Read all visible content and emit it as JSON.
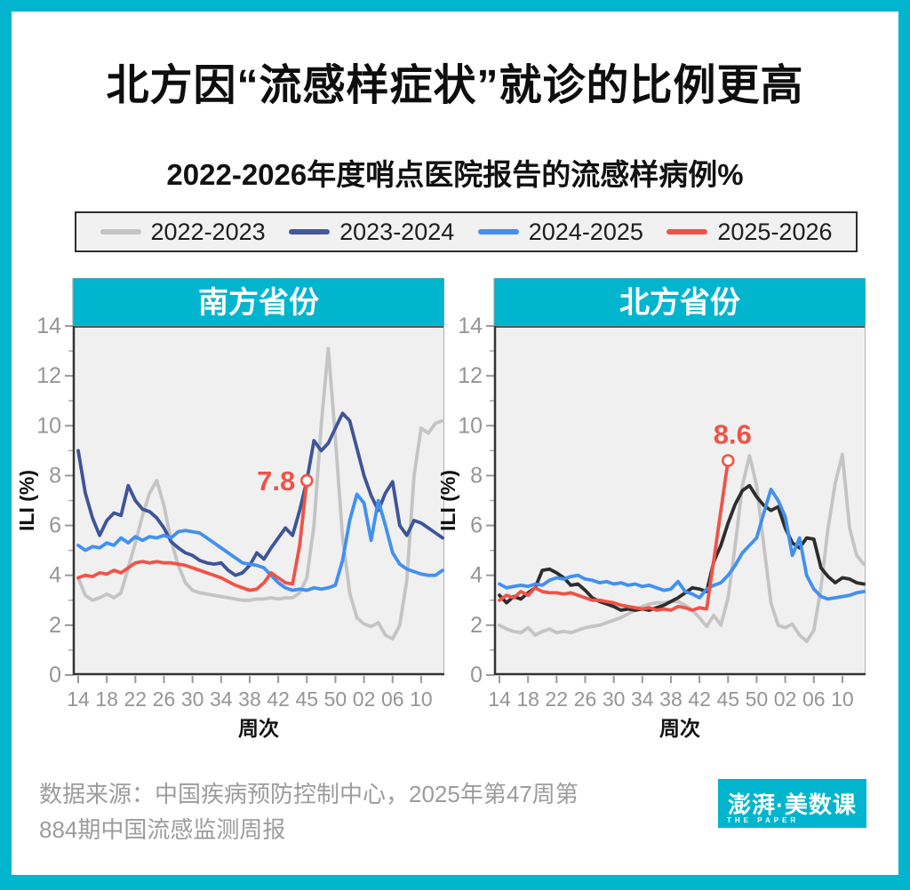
{
  "colors": {
    "teal": "#00b5cd",
    "plot_bg": "#f0f0f0",
    "axis": "#333333",
    "tick_text": "#959595",
    "annotation_red": "#ef5347"
  },
  "title": "北方因“流感样症状”就诊的比例更高",
  "subtitle": "2022-2026年度哨点医院报告的流感样病例%",
  "legend": {
    "items": [
      {
        "label": "2022-2023",
        "color": "#c4c4c4"
      },
      {
        "label": "2023-2024",
        "color": "#45589e"
      },
      {
        "label": "2024-2025",
        "color": "#4190f0"
      },
      {
        "label": "2025-2026",
        "color": "#ef5347"
      }
    ]
  },
  "footer": {
    "source_line1": "数据来源：中国疾病预防控制中心，2025年第47周第",
    "source_line2": "884期中国流感监测周报",
    "logo_main": "澎湃·美数课",
    "logo_sub": "THE PAPER"
  },
  "chart_data": [
    {
      "type": "line",
      "title": "南方省份",
      "xlabel": "周次",
      "ylabel": "ILI (%)",
      "ylim": [
        0,
        14
      ],
      "y_ticks": [
        0,
        2,
        4,
        6,
        8,
        10,
        12,
        14
      ],
      "x_ticks": [
        "14",
        "18",
        "22",
        "26",
        "30",
        "34",
        "38",
        "42",
        "45",
        "50",
        "02",
        "06",
        "10"
      ],
      "n_points": 52,
      "annotation": {
        "text": "7.8",
        "placement": "left"
      },
      "series": [
        {
          "name": "2022-2023",
          "color": "#c4c4c4",
          "values": [
            3.9,
            3.2,
            3.0,
            3.1,
            3.25,
            3.1,
            3.3,
            4.3,
            5.3,
            6.4,
            7.3,
            7.8,
            6.8,
            5.4,
            4.4,
            3.7,
            3.4,
            3.3,
            3.25,
            3.2,
            3.15,
            3.1,
            3.05,
            3.0,
            3.0,
            3.05,
            3.05,
            3.1,
            3.05,
            3.1,
            3.1,
            3.3,
            3.9,
            6.0,
            10.0,
            13.1,
            9.5,
            5.5,
            3.3,
            2.3,
            2.05,
            1.95,
            2.1,
            1.6,
            1.45,
            2.0,
            3.8,
            8.0,
            9.9,
            9.7,
            10.1,
            10.2
          ]
        },
        {
          "name": "2023-2024",
          "color": "#3e549a",
          "values": [
            9.0,
            7.3,
            6.3,
            5.6,
            6.2,
            6.5,
            6.4,
            7.6,
            7.0,
            6.65,
            6.55,
            6.3,
            5.9,
            5.35,
            5.1,
            4.9,
            4.8,
            4.6,
            4.5,
            4.45,
            4.5,
            4.2,
            4.0,
            4.1,
            4.4,
            4.9,
            4.65,
            5.1,
            5.5,
            5.9,
            5.6,
            6.6,
            7.8,
            9.4,
            9.0,
            9.3,
            9.9,
            10.5,
            10.2,
            9.1,
            8.0,
            7.2,
            6.6,
            7.3,
            7.75,
            6.0,
            5.6,
            6.2,
            6.1,
            5.9,
            5.7,
            5.5
          ]
        },
        {
          "name": "2024-2025",
          "color": "#4190f0",
          "values": [
            5.2,
            5.0,
            5.15,
            5.1,
            5.3,
            5.2,
            5.5,
            5.3,
            5.55,
            5.4,
            5.55,
            5.5,
            5.6,
            5.5,
            5.75,
            5.8,
            5.75,
            5.7,
            5.5,
            5.3,
            5.1,
            4.9,
            4.7,
            4.5,
            4.45,
            4.4,
            4.3,
            4.0,
            3.7,
            3.5,
            3.4,
            3.45,
            3.4,
            3.5,
            3.45,
            3.5,
            3.6,
            4.6,
            6.2,
            7.25,
            6.9,
            5.4,
            7.0,
            6.0,
            4.9,
            4.45,
            4.25,
            4.15,
            4.05,
            4.0,
            4.0,
            4.2
          ]
        },
        {
          "name": "2025-2026",
          "color": "#ef5347",
          "end_marker": true,
          "values": [
            3.9,
            4.0,
            3.95,
            4.1,
            4.05,
            4.2,
            4.1,
            4.3,
            4.5,
            4.55,
            4.5,
            4.55,
            4.5,
            4.5,
            4.45,
            4.4,
            4.3,
            4.2,
            4.1,
            4.0,
            3.9,
            3.75,
            3.6,
            3.5,
            3.4,
            3.45,
            3.7,
            4.1,
            3.9,
            3.7,
            3.65,
            5.2,
            7.8
          ]
        }
      ]
    },
    {
      "type": "line",
      "title": "北方省份",
      "xlabel": "周次",
      "ylabel": "ILI (%)",
      "ylim": [
        0,
        14
      ],
      "y_ticks": [
        0,
        2,
        4,
        6,
        8,
        10,
        12,
        14
      ],
      "x_ticks": [
        "14",
        "18",
        "22",
        "26",
        "30",
        "34",
        "38",
        "42",
        "45",
        "50",
        "02",
        "06",
        "10"
      ],
      "n_points": 52,
      "annotation": {
        "text": "8.6",
        "placement": "above"
      },
      "series": [
        {
          "name": "2022-2023",
          "color": "#c4c4c4",
          "values": [
            2.0,
            1.85,
            1.75,
            1.7,
            1.9,
            1.6,
            1.75,
            1.85,
            1.7,
            1.75,
            1.7,
            1.8,
            1.9,
            1.95,
            2.0,
            2.1,
            2.2,
            2.3,
            2.45,
            2.6,
            2.75,
            2.85,
            2.9,
            2.9,
            2.95,
            2.95,
            2.8,
            2.6,
            2.3,
            1.95,
            2.4,
            2.0,
            3.1,
            5.2,
            7.6,
            8.8,
            7.6,
            5.2,
            2.9,
            2.0,
            1.9,
            2.05,
            1.6,
            1.35,
            1.8,
            3.5,
            5.9,
            7.7,
            8.85,
            5.9,
            4.8,
            4.45
          ]
        },
        {
          "name": "2023-2024",
          "color": "#2d2d2d",
          "values": [
            3.2,
            2.9,
            3.15,
            3.05,
            3.3,
            3.5,
            4.2,
            4.25,
            4.1,
            3.9,
            3.6,
            3.65,
            3.4,
            3.1,
            2.95,
            2.85,
            2.75,
            2.6,
            2.65,
            2.6,
            2.65,
            2.6,
            2.7,
            2.8,
            2.95,
            3.1,
            3.3,
            3.5,
            3.45,
            3.35,
            4.55,
            5.2,
            6.1,
            6.85,
            7.4,
            7.6,
            7.15,
            6.8,
            6.6,
            6.75,
            5.9,
            5.3,
            5.1,
            5.5,
            5.45,
            4.3,
            3.95,
            3.7,
            3.9,
            3.85,
            3.7,
            3.65
          ]
        },
        {
          "name": "2024-2025",
          "color": "#4190f0",
          "values": [
            3.65,
            3.5,
            3.55,
            3.6,
            3.55,
            3.65,
            3.6,
            3.8,
            3.9,
            3.85,
            3.95,
            4.0,
            3.85,
            3.8,
            3.7,
            3.75,
            3.65,
            3.7,
            3.6,
            3.65,
            3.55,
            3.6,
            3.5,
            3.4,
            3.45,
            3.75,
            3.35,
            3.25,
            3.1,
            3.45,
            3.6,
            3.7,
            4.0,
            4.4,
            4.9,
            5.2,
            5.5,
            6.5,
            7.45,
            7.0,
            6.35,
            4.8,
            5.5,
            4.0,
            3.45,
            3.15,
            3.05,
            3.1,
            3.15,
            3.2,
            3.3,
            3.35
          ]
        },
        {
          "name": "2025-2026",
          "color": "#ef5347",
          "end_marker": true,
          "values": [
            3.0,
            3.2,
            3.1,
            3.35,
            3.2,
            3.5,
            3.35,
            3.3,
            3.3,
            3.25,
            3.3,
            3.2,
            3.1,
            3.0,
            3.0,
            2.95,
            2.9,
            2.8,
            2.75,
            2.7,
            2.65,
            2.7,
            2.6,
            2.65,
            2.6,
            2.75,
            2.7,
            2.6,
            2.7,
            2.65,
            4.6,
            6.6,
            8.6
          ]
        }
      ]
    }
  ]
}
